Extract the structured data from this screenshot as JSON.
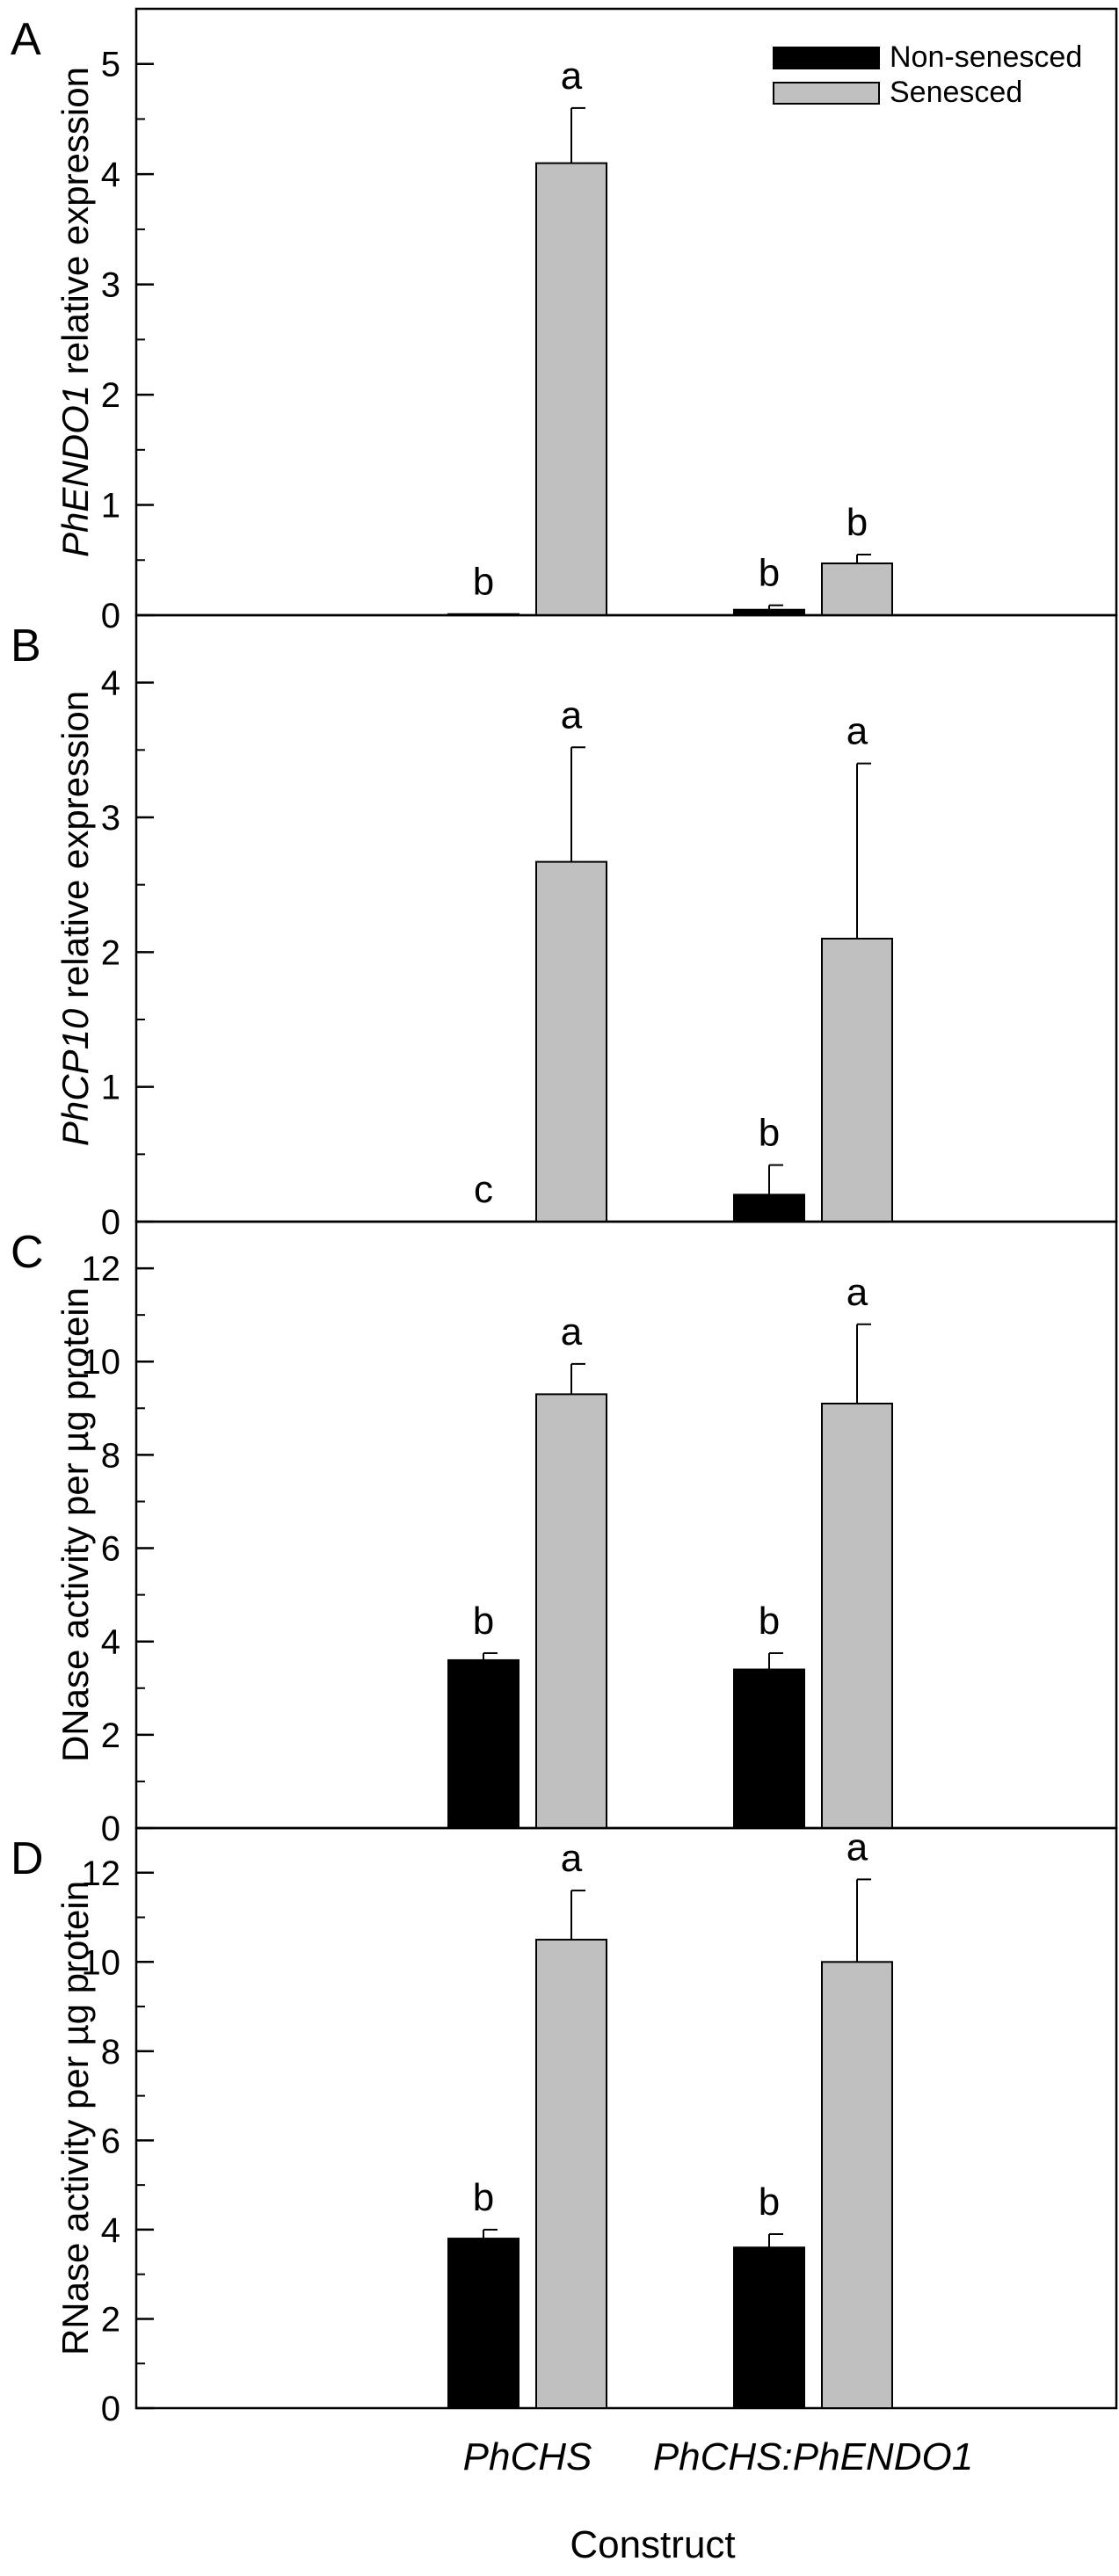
{
  "chart_data": {
    "type": "bar",
    "categories": [
      "PhCHS",
      "PhCHS:PhENDO1"
    ],
    "xlabel": "Construct",
    "legend": {
      "placement": "top-right",
      "entries": [
        {
          "name": "Non-senesced",
          "color": "#000000"
        },
        {
          "name": "Senesced",
          "color": "#c0c0c0"
        }
      ]
    },
    "panels": [
      {
        "letter": "A",
        "ylabel_italic": "PhENDO1",
        "ylabel_rest": " relative expression",
        "ylim": [
          0,
          5.5
        ],
        "yticks": [
          0,
          1,
          2,
          3,
          4,
          5
        ],
        "minor_step": 0.5,
        "series": [
          {
            "name": "Non-senesced",
            "values": [
              0.01,
              0.05
            ],
            "errors": [
              0.0,
              0.04
            ],
            "labels": [
              "b",
              "b"
            ]
          },
          {
            "name": "Senesced",
            "values": [
              4.1,
              0.47
            ],
            "errors": [
              0.5,
              0.08
            ],
            "labels": [
              "a",
              "b"
            ]
          }
        ]
      },
      {
        "letter": "B",
        "ylabel_italic": "PhCP10",
        "ylabel_rest": " relative expression",
        "ylim": [
          0,
          4.5
        ],
        "yticks": [
          0,
          1,
          2,
          3,
          4
        ],
        "minor_step": 0.5,
        "series": [
          {
            "name": "Non-senesced",
            "values": [
              0.0,
              0.2
            ],
            "errors": [
              0.0,
              0.22
            ],
            "labels": [
              "c",
              "b"
            ]
          },
          {
            "name": "Senesced",
            "values": [
              2.67,
              2.1
            ],
            "errors": [
              0.85,
              1.3
            ],
            "labels": [
              "a",
              "a"
            ]
          }
        ]
      },
      {
        "letter": "C",
        "ylabel_italic": "",
        "ylabel_rest": "DNase activity per µg protein",
        "ylim": [
          0,
          13
        ],
        "yticks": [
          0,
          2,
          4,
          6,
          8,
          10,
          12
        ],
        "minor_step": 1,
        "series": [
          {
            "name": "Non-senesced",
            "values": [
              3.6,
              3.4
            ],
            "errors": [
              0.15,
              0.35
            ],
            "labels": [
              "b",
              "b"
            ]
          },
          {
            "name": "Senesced",
            "values": [
              9.3,
              9.1
            ],
            "errors": [
              0.65,
              1.7
            ],
            "labels": [
              "a",
              "a"
            ]
          }
        ]
      },
      {
        "letter": "D",
        "ylabel_italic": "",
        "ylabel_rest": "RNase activity per µg protein",
        "ylim": [
          0,
          13
        ],
        "yticks": [
          0,
          2,
          4,
          6,
          8,
          10,
          12
        ],
        "minor_step": 1,
        "series": [
          {
            "name": "Non-senesced",
            "values": [
              3.8,
              3.6
            ],
            "errors": [
              0.2,
              0.3
            ],
            "labels": [
              "b",
              "b"
            ]
          },
          {
            "name": "Senesced",
            "values": [
              10.5,
              10.0
            ],
            "errors": [
              1.1,
              1.85
            ],
            "labels": [
              "a",
              "a"
            ]
          }
        ]
      }
    ]
  }
}
